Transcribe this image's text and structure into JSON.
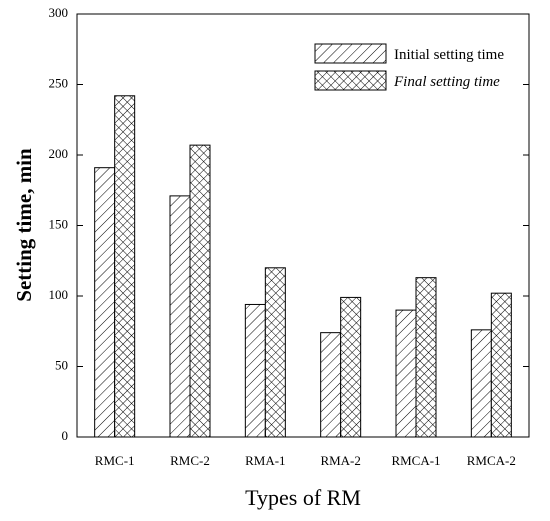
{
  "chart_data": {
    "type": "bar",
    "categories": [
      "RMC-1",
      "RMC-2",
      "RMA-1",
      "RMA-2",
      "RMCA-1",
      "RMCA-2"
    ],
    "series": [
      {
        "name": "Initial setting time",
        "values": [
          191,
          171,
          94,
          74,
          90,
          76
        ],
        "pattern": "diagonal-hatch"
      },
      {
        "name": "Final setting time",
        "values": [
          242,
          207,
          120,
          99,
          113,
          102
        ],
        "pattern": "cross-hatch"
      }
    ],
    "xlabel": "Types of RM",
    "ylabel": "Setting time, min",
    "ylim": [
      0,
      300
    ],
    "yticks": [
      0,
      50,
      100,
      150,
      200,
      250,
      300
    ],
    "grid": false,
    "legend_position": "top-right"
  }
}
